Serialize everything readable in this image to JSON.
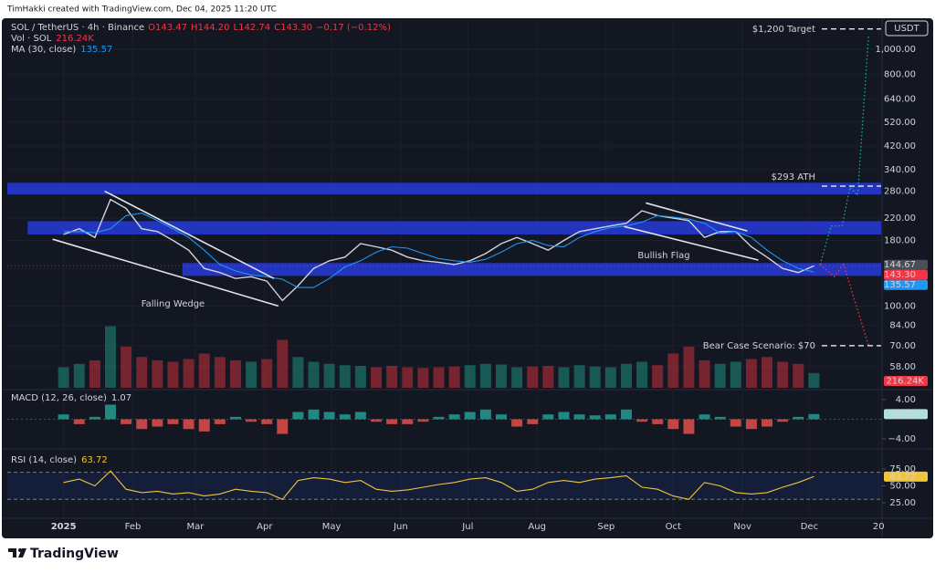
{
  "header": {
    "credit": "TimHakki created with TradingView.com, Dec 04, 2025 11:20 UTC"
  },
  "footer": {
    "brand": "TradingView"
  },
  "chart_data": {
    "type": "line",
    "currency": "USDT",
    "legend": {
      "ohlc": [
        "O143.47",
        "H144.20",
        "L142.74",
        "C143.30",
        "−0.17 (−0.12%)"
      ]
    },
    "x": [
      0,
      1,
      2,
      3,
      4,
      5,
      6,
      7,
      8,
      9,
      10,
      11,
      12,
      13,
      14,
      15,
      16,
      17,
      18,
      19,
      20,
      21,
      22,
      23,
      24,
      25,
      26,
      27,
      28,
      29,
      30,
      31,
      32,
      33,
      34,
      35,
      36,
      37,
      38,
      39,
      40,
      41,
      42,
      43,
      44,
      45,
      46,
      47,
      48
    ],
    "xlim": [
      -3.6,
      52.3
    ],
    "xticks": [
      {
        "value": 0,
        "label": "2025"
      },
      {
        "value": 4.43,
        "label": "Feb"
      },
      {
        "value": 8.43,
        "label": "Mar"
      },
      {
        "value": 12.86,
        "label": "Apr"
      },
      {
        "value": 17.14,
        "label": "May"
      },
      {
        "value": 21.57,
        "label": "Jun"
      },
      {
        "value": 25.86,
        "label": "Jul"
      },
      {
        "value": 30.29,
        "label": "Aug"
      },
      {
        "value": 34.71,
        "label": "Sep"
      },
      {
        "value": 39,
        "label": "Oct"
      },
      {
        "value": 43.43,
        "label": "Nov"
      },
      {
        "value": 47.71,
        "label": "Dec"
      },
      {
        "value": 52.14,
        "label": "20"
      }
    ],
    "log_scale": true,
    "grid": true,
    "ylim": [
      48,
      1300
    ],
    "yticks": [
      {
        "value": 1000,
        "label": "1,000.00"
      },
      {
        "value": 800,
        "label": "800.00"
      },
      {
        "value": 640,
        "label": "640.00"
      },
      {
        "value": 520,
        "label": "520.00"
      },
      {
        "value": 420,
        "label": "420.00"
      },
      {
        "value": 340,
        "label": "340.00"
      },
      {
        "value": 280,
        "label": "280.00"
      },
      {
        "value": 220,
        "label": "220.00"
      },
      {
        "value": 180,
        "label": "180.00"
      },
      {
        "value": 140,
        "label": "140.00"
      },
      {
        "value": 100,
        "label": "100.00"
      },
      {
        "value": 84,
        "label": "84.00"
      },
      {
        "value": 70,
        "label": "70.00"
      },
      {
        "value": 58,
        "label": "58.00"
      }
    ],
    "series": [
      {
        "name": "SOL / TetherUS · 4h · Binance",
        "color": "#d1d4dc",
        "last_label": "143.30",
        "last_color": "#f23645",
        "values": [
          190,
          200,
          185,
          260,
          240,
          200,
          195,
          180,
          165,
          140,
          135,
          128,
          130,
          125,
          105,
          120,
          140,
          150,
          155,
          175,
          170,
          165,
          155,
          150,
          148,
          145,
          150,
          160,
          175,
          185,
          175,
          165,
          180,
          195,
          200,
          205,
          210,
          235,
          225,
          220,
          215,
          185,
          195,
          195,
          170,
          155,
          140,
          135,
          143.3
        ]
      },
      {
        "name": "MA (30, close)",
        "color": "#2196f3",
        "values": [
          195,
          195,
          193,
          200,
          225,
          230,
          215,
          200,
          185,
          165,
          145,
          137,
          132,
          130,
          127,
          118,
          118,
          128,
          142,
          150,
          162,
          170,
          168,
          160,
          153,
          150,
          148,
          152,
          162,
          175,
          180,
          172,
          170,
          185,
          195,
          202,
          205,
          212,
          225,
          222,
          218,
          210,
          192,
          195,
          185,
          165,
          150,
          140,
          135.57
        ]
      }
    ],
    "price_labels": [
      {
        "value": 144.67,
        "color": "#4a4e59"
      }
    ],
    "zone_color": "#2638d0",
    "zones": [
      {
        "from": -3.6,
        "low": 272,
        "high": 302
      },
      {
        "from": -2.3,
        "low": 190,
        "high": 214
      },
      {
        "from": 7.6,
        "low": 131,
        "high": 147
      }
    ],
    "trendline_color": "#e0e3eb",
    "trendlines": [
      {
        "x": [
          2.63,
          13.45
        ],
        "y": [
          280,
          128
        ]
      },
      {
        "x": [
          -0.7,
          13.74
        ],
        "y": [
          182,
          100
        ]
      },
      {
        "x": [
          37.25,
          43.74
        ],
        "y": [
          252,
          196
        ]
      },
      {
        "x": [
          35.85,
          44.44
        ],
        "y": [
          204,
          151
        ]
      }
    ],
    "projections": [
      {
        "color": "#22ab94",
        "x": [
          48.4,
          49.1,
          49.8,
          50.3,
          50.8,
          51.5
        ],
        "y": [
          145,
          205,
          205,
          290,
          270,
          1140
        ]
      },
      {
        "color": "#f23645",
        "x": [
          48.4,
          49.3,
          49.9,
          51.5
        ],
        "y": [
          145,
          130,
          145,
          70
        ]
      }
    ],
    "levels": [
      {
        "label": "$1,200 Target",
        "value": 1200
      },
      {
        "label": "$293 ATH",
        "value": 293
      },
      {
        "label": "Bear Case Scenario: $70",
        "value": 70
      }
    ],
    "annotations": [
      {
        "text": "Falling Wedge",
        "x": 7.0,
        "y": 102
      },
      {
        "text": "Bullish Flag",
        "x": 38.4,
        "y": 157
      }
    ],
    "volume": {
      "name": "Vol · SOL",
      "last_label": "216.24K",
      "ylim": [
        0,
        1400
      ],
      "values": [
        300,
        350,
        400,
        900,
        600,
        450,
        400,
        380,
        420,
        500,
        450,
        400,
        380,
        420,
        700,
        450,
        380,
        350,
        330,
        320,
        300,
        320,
        300,
        290,
        300,
        310,
        330,
        350,
        340,
        300,
        310,
        320,
        300,
        330,
        310,
        300,
        350,
        380,
        330,
        500,
        600,
        400,
        350,
        380,
        420,
        450,
        380,
        350,
        216.24
      ]
    },
    "macd": {
      "name": "MACD (12, 26, close)",
      "ylim": [
        -5.7,
        5.9
      ],
      "yticks": [
        {
          "value": 4,
          "label": "4.00"
        },
        {
          "value": -4,
          "label": "−4.00"
        }
      ],
      "values": [
        1,
        -1,
        0.5,
        3,
        -1,
        -2,
        -1.5,
        -1,
        -2,
        -2.5,
        -1,
        0.5,
        -0.5,
        -1,
        -3,
        1.5,
        2,
        1.5,
        1,
        1.5,
        -0.5,
        -1,
        -1,
        -0.5,
        0.5,
        1,
        1.5,
        2,
        1,
        -1.5,
        -1,
        1,
        1.5,
        1,
        0.8,
        1,
        2,
        -0.5,
        -1,
        -2,
        -3,
        1,
        0.5,
        -1.5,
        -2,
        -1.5,
        -0.5,
        0.5,
        1.07
      ]
    },
    "rsi": {
      "name": "RSI (14, close)",
      "color": "#f0c53c",
      "ylim": [
        4.7,
        102
      ],
      "bands": [
        30,
        70
      ],
      "yticks": [
        {
          "value": 75,
          "label": "75.00"
        },
        {
          "value": 50,
          "label": "50.00"
        },
        {
          "value": 25,
          "label": "25.00"
        }
      ],
      "values": [
        55,
        60,
        50,
        72,
        45,
        40,
        42,
        38,
        40,
        35,
        38,
        45,
        42,
        40,
        30,
        58,
        62,
        60,
        55,
        58,
        45,
        42,
        44,
        48,
        52,
        55,
        60,
        62,
        55,
        42,
        45,
        55,
        58,
        55,
        60,
        62,
        65,
        48,
        45,
        35,
        30,
        55,
        50,
        40,
        38,
        40,
        48,
        55,
        63.72
      ]
    }
  }
}
